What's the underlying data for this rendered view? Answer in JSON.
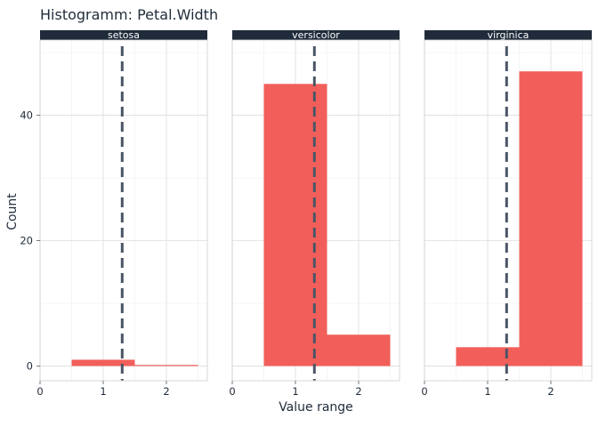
{
  "chart_data": {
    "type": "bar",
    "title": "Histogramm: Petal.Width",
    "xlabel": "Value range",
    "ylabel": "Count",
    "xlim": [
      0,
      2.6
    ],
    "ylim": [
      -2.35,
      52
    ],
    "x_ticks": [
      0,
      1,
      2
    ],
    "y_ticks": [
      0,
      20,
      40
    ],
    "grid": true,
    "colors": {
      "bar": "#f25f5a",
      "mean_line": "#4a5566",
      "strip": "#1f2b3a",
      "grid": "#dcdcdc",
      "panel_border": "#cfcfcf"
    },
    "mean_line_x": 1.3,
    "panels": [
      {
        "label": "setosa",
        "bins": [
          {
            "x0": 0.5,
            "x1": 1.5,
            "count": 1
          },
          {
            "x0": 1.5,
            "x1": 2.5,
            "count": 0
          }
        ]
      },
      {
        "label": "versicolor",
        "bins": [
          {
            "x0": 0.5,
            "x1": 1.5,
            "count": 45
          },
          {
            "x0": 1.5,
            "x1": 2.5,
            "count": 5
          }
        ]
      },
      {
        "label": "virginica",
        "bins": [
          {
            "x0": 0.5,
            "x1": 1.5,
            "count": 3
          },
          {
            "x0": 1.5,
            "x1": 2.5,
            "count": 47
          }
        ]
      }
    ]
  }
}
